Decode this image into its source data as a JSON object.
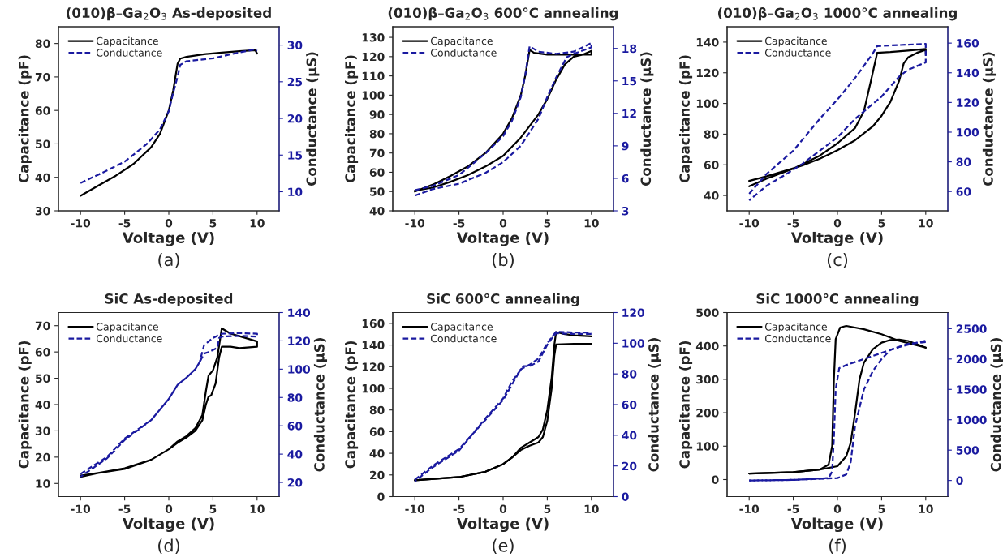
{
  "chart_data": [
    {
      "type": "line",
      "title": "(010)β–Ga$_{2}$O$_{3}$ As-deposited",
      "xlabel": "Voltage (V)",
      "ylabel": "Capacitance (pF)",
      "y2label": "Conductance (μS)",
      "annotations": [
        "(a)"
      ],
      "legend": "top left",
      "xlim": [
        -12.5,
        12.5
      ],
      "xticks": [
        -10,
        -5,
        0,
        5,
        10
      ],
      "ylim": [
        30,
        85
      ],
      "yticks": [
        30,
        40,
        50,
        60,
        70,
        80
      ],
      "y2lim": [
        7.4,
        32.5
      ],
      "y2ticks": [
        10,
        15,
        20,
        25,
        30
      ],
      "series": [
        {
          "name": "Capacitance",
          "color": "#000000",
          "line_style": "solid",
          "x": [
            -10,
            -8,
            -6,
            -4,
            -2,
            -1,
            0,
            0.5,
            1,
            1.3,
            2,
            4,
            6,
            8,
            9.8,
            10
          ],
          "values": [
            34.5,
            37.5,
            40.5,
            44,
            49,
            53,
            60,
            66,
            74,
            75.5,
            76,
            76.8,
            77.3,
            77.7,
            78,
            77
          ]
        },
        {
          "name": "Conductance",
          "color": "#1a1aa0",
          "line_style": "dashed",
          "axis": "y2",
          "x": [
            -10,
            -7.5,
            -5,
            -2.5,
            -1,
            0,
            0.5,
            1,
            1.3,
            2,
            5,
            8,
            9.7,
            10
          ],
          "values": [
            11.2,
            12.6,
            14.1,
            16.5,
            18.5,
            21,
            23.5,
            25.7,
            27.3,
            27.8,
            28.2,
            29,
            29.4,
            29.2
          ]
        }
      ]
    },
    {
      "type": "line",
      "title": "(010)β–Ga$_{2}$O$_{3}$ 600°C annealing",
      "xlabel": "Voltage (V)",
      "ylabel": "Capacitance (pF)",
      "y2label": "Conductance (μS)",
      "annotations": [
        "(b)"
      ],
      "legend": "top left",
      "xlim": [
        -12.5,
        12.5
      ],
      "xticks": [
        -10,
        -5,
        0,
        5,
        10
      ],
      "ylim": [
        40,
        135.5
      ],
      "yticks": [
        40,
        50,
        60,
        70,
        80,
        90,
        100,
        110,
        120,
        130
      ],
      "y2lim": [
        3,
        20
      ],
      "y2ticks": [
        3,
        6,
        9,
        12,
        15,
        18
      ],
      "series": [
        {
          "name": "Capacitance",
          "color": "#000000",
          "line_style": "solid",
          "x": [
            -10,
            -8,
            -6,
            -4,
            -2,
            0,
            1,
            2,
            2.5,
            3,
            3.5,
            5,
            8,
            10,
            10,
            9,
            8,
            7,
            6,
            5,
            4,
            2,
            0,
            -2,
            -4,
            -6,
            -8,
            -10
          ],
          "values": [
            50,
            53.5,
            58,
            63,
            70,
            80,
            88,
            100,
            110,
            123.5,
            122,
            121,
            121,
            121,
            123,
            121,
            120,
            116,
            108,
            98,
            90,
            78,
            68.5,
            63,
            58.5,
            55,
            52,
            50.5
          ]
        },
        {
          "name": "Conductance",
          "color": "#1a1aa0",
          "line_style": "dashed",
          "axis": "y2",
          "x": [
            -10,
            -8,
            -5,
            -2,
            0,
            1,
            2,
            2.5,
            3,
            4,
            6,
            8,
            10,
            10,
            8,
            7.2,
            6,
            5,
            4,
            2,
            0,
            -2,
            -5,
            -8,
            -10
          ],
          "values": [
            4.9,
            5.3,
            6.3,
            8.3,
            9.9,
            11.3,
            13.5,
            15.5,
            18.2,
            17.7,
            17.5,
            17.7,
            18.5,
            18.1,
            17.5,
            17.2,
            15.3,
            13.5,
            11.5,
            9,
            7.5,
            6.5,
            5.5,
            5,
            4.4
          ]
        }
      ]
    },
    {
      "type": "line",
      "title": "(010)β–Ga$_{2}$O$_{3}$ 1000°C annealing",
      "xlabel": "Voltage (V)",
      "ylabel": "Capacitance (pF)",
      "y2label": "Conductance (μS)",
      "annotations": [
        "(c)"
      ],
      "legend": "top left",
      "xlim": [
        -12.5,
        12.5
      ],
      "xticks": [
        -10,
        -5,
        0,
        5,
        10
      ],
      "ylim": [
        30,
        150
      ],
      "yticks": [
        40,
        60,
        80,
        100,
        120,
        140
      ],
      "y2lim": [
        47,
        171
      ],
      "y2ticks": [
        60,
        80,
        100,
        120,
        140,
        160
      ],
      "series": [
        {
          "name": "Capacitance",
          "color": "#000000",
          "line_style": "solid",
          "x": [
            -10,
            -8,
            -5,
            -2,
            0,
            2,
            3,
            3.8,
            4.5,
            6,
            8,
            10,
            10,
            10,
            9,
            8,
            7.5,
            7,
            6,
            5,
            4,
            2,
            0,
            -2,
            -4,
            -6,
            -8,
            -10
          ],
          "values": [
            46,
            51,
            57.5,
            66,
            74,
            84,
            95,
            115,
            133,
            133.5,
            134.5,
            135.5,
            132,
            135,
            133,
            130,
            126,
            115,
            101,
            92,
            85,
            76,
            69.5,
            64,
            59.5,
            56,
            52.5,
            49.5
          ]
        },
        {
          "name": "Conductance",
          "color": "#1a1aa0",
          "line_style": "dashed",
          "axis": "y2",
          "x": [
            -10,
            -8,
            -5,
            -2,
            0,
            2,
            4,
            4.5,
            10,
            10,
            8,
            7,
            5,
            2,
            0,
            -4,
            -6,
            -8,
            -10
          ],
          "values": [
            58.5,
            72,
            87.5,
            109,
            122,
            136.5,
            153,
            158,
            159.5,
            147,
            142,
            137.5,
            124,
            109,
            96.5,
            78.5,
            71,
            64,
            54
          ]
        }
      ]
    },
    {
      "type": "line",
      "title": "SiC As-deposited",
      "xlabel": "Voltage (V)",
      "ylabel": "Capacitance (pF)",
      "y2label": "Conductance (μS)",
      "annotations": [
        "(d)"
      ],
      "legend": "top left",
      "xlim": [
        -12.5,
        12.5
      ],
      "xticks": [
        -10,
        -5,
        0,
        5,
        10
      ],
      "ylim": [
        5,
        75
      ],
      "yticks": [
        10,
        20,
        30,
        40,
        50,
        60,
        70
      ],
      "y2lim": [
        10,
        140
      ],
      "y2ticks": [
        20,
        40,
        60,
        80,
        100,
        120,
        140
      ],
      "series": [
        {
          "name": "Capacitance",
          "color": "#000000",
          "line_style": "solid",
          "x": [
            -10,
            -8,
            -5,
            -2,
            0,
            1,
            2,
            3,
            3.8,
            4.2,
            4.5,
            5,
            5.5,
            6,
            7,
            8,
            9,
            10,
            10,
            8,
            7,
            6,
            5.7,
            5.3,
            4.8,
            4.5,
            4.2,
            3.8,
            3,
            2,
            1,
            0,
            -2,
            -5,
            -8,
            -10
          ],
          "values": [
            13,
            14,
            15.8,
            19,
            23,
            26,
            28,
            31,
            36,
            45,
            51,
            53,
            58,
            69,
            67,
            66,
            65,
            64,
            62,
            61.5,
            62,
            62,
            58,
            48,
            43.5,
            43,
            40,
            34,
            30,
            27.5,
            25.5,
            23,
            19,
            15.5,
            14,
            12.5
          ]
        },
        {
          "name": "Conductance",
          "color": "#1a1aa0",
          "line_style": "dashed",
          "axis": "y2",
          "x": [
            -10,
            -7,
            -5,
            -2,
            0,
            1,
            2,
            3,
            3.5,
            4,
            5,
            6,
            8,
            10,
            10,
            8,
            6,
            5.7,
            5.5,
            4.5,
            4,
            3.5,
            3,
            2,
            1,
            0,
            -2,
            -5,
            -7,
            -10
          ],
          "values": [
            26,
            38,
            51,
            64,
            79,
            89,
            94,
            100,
            105,
            117,
            122,
            125,
            125.5,
            125,
            123,
            123.5,
            123,
            122,
            115,
            112,
            111,
            105,
            100,
            94,
            89,
            79,
            64,
            50,
            37,
            24
          ]
        }
      ]
    },
    {
      "type": "line",
      "title": "SiC 600°C annealing",
      "xlabel": "Voltage (V)",
      "ylabel": "Capacitance (pF)",
      "y2label": "Conductance (μS)",
      "annotations": [
        "(e)"
      ],
      "legend": "top left",
      "xlim": [
        -12.5,
        12.5
      ],
      "xticks": [
        -10,
        -5,
        0,
        5,
        10
      ],
      "ylim": [
        0,
        170
      ],
      "yticks": [
        0,
        20,
        40,
        60,
        80,
        100,
        120,
        140,
        160
      ],
      "y2lim": [
        0,
        120
      ],
      "y2ticks": [
        0,
        20,
        40,
        60,
        80,
        100,
        120
      ],
      "series": [
        {
          "name": "Capacitance",
          "color": "#000000",
          "line_style": "solid",
          "x": [
            -10,
            -5,
            -2,
            0,
            1,
            2,
            3,
            4,
            4.5,
            5,
            5.5,
            5.8,
            6,
            7,
            8,
            10
          ],
          "values": [
            15,
            18,
            23,
            30,
            36,
            45,
            50,
            55,
            62,
            80,
            110,
            140,
            152,
            150,
            149,
            148
          ]
        },
        {
          "name": "Conductance",
          "color": "#1a1aa0",
          "line_style": "dashed",
          "axis": "y2",
          "x": [
            -10,
            -8,
            -5,
            -2,
            0,
            1,
            2,
            3,
            4,
            5,
            5.8,
            6,
            8,
            10
          ],
          "values": [
            11,
            20,
            31,
            50,
            63,
            73,
            83,
            86,
            90,
            100,
            106,
            107.5,
            107,
            107
          ]
        },
        {
          "color": "#000000",
          "line_style": "solid",
          "x": [
            10,
            8,
            6,
            5.8,
            5.5,
            5,
            4.5,
            4,
            3,
            2,
            1,
            0,
            -2,
            -5,
            -10
          ],
          "values": [
            141,
            141,
            140.5,
            130,
            100,
            70,
            55,
            50,
            47,
            43,
            36,
            30,
            23,
            18,
            15
          ]
        },
        {
          "color": "#1a1aa0",
          "line_style": "dashed",
          "axis": "y2",
          "x": [
            10,
            8,
            6,
            5.5,
            5,
            4,
            3,
            2.3,
            1,
            0,
            -2,
            -5,
            -8,
            -10
          ],
          "values": [
            106,
            106,
            106.5,
            103,
            99,
            88,
            85,
            85,
            75,
            64,
            51,
            30,
            19,
            10
          ]
        }
      ]
    },
    {
      "type": "line",
      "title": "SiC 1000°C annealing",
      "xlabel": "Voltage (V)",
      "ylabel": "Capacitance (pF)",
      "y2label": "Conductance (μS)",
      "annotations": [
        "(f)"
      ],
      "legend": "top left",
      "xlim": [
        -12.5,
        12.5
      ],
      "xticks": [
        -10,
        -5,
        0,
        5,
        10
      ],
      "ylim": [
        -51,
        500
      ],
      "yticks": [
        0,
        100,
        200,
        300,
        400,
        500
      ],
      "y2lim": [
        -265,
        2765
      ],
      "y2ticks": [
        0,
        500,
        1000,
        1500,
        2000,
        2500
      ],
      "series": [
        {
          "name": "Capacitance",
          "color": "#000000",
          "line_style": "solid",
          "x": [
            -10,
            -5,
            -2,
            -1,
            -0.6,
            -0.4,
            -0.2,
            0.3,
            1,
            3,
            5,
            7,
            9,
            10
          ],
          "values": [
            18,
            22,
            30,
            45,
            100,
            300,
            420,
            455,
            460,
            450,
            435,
            415,
            402,
            395
          ]
        },
        {
          "name": "Conductance",
          "color": "#1a1aa0",
          "line_style": "dashed",
          "axis": "y2",
          "x": [
            -10,
            -5,
            -1,
            -0.6,
            -0.4,
            -0.2,
            0.2,
            1,
            3,
            5,
            7,
            9,
            10
          ],
          "values": [
            0,
            10,
            40,
            150,
            700,
            1500,
            1850,
            1900,
            2000,
            2100,
            2200,
            2270,
            2300
          ]
        },
        {
          "color": "#000000",
          "line_style": "solid",
          "x": [
            10,
            9,
            8,
            7,
            6,
            5,
            4,
            3,
            2.5,
            2,
            1.5,
            1,
            0,
            -2,
            -5,
            -10
          ],
          "values": [
            395,
            405,
            415,
            419,
            418,
            410,
            390,
            350,
            300,
            200,
            110,
            70,
            40,
            30,
            22,
            18
          ]
        },
        {
          "color": "#1a1aa0",
          "line_style": "dashed",
          "axis": "y2",
          "x": [
            10,
            8,
            6,
            5,
            4,
            3,
            2,
            1.5,
            1,
            0,
            -5,
            -10
          ],
          "values": [
            2280,
            2250,
            2150,
            2000,
            1800,
            1500,
            900,
            300,
            100,
            40,
            10,
            0
          ]
        }
      ]
    }
  ]
}
